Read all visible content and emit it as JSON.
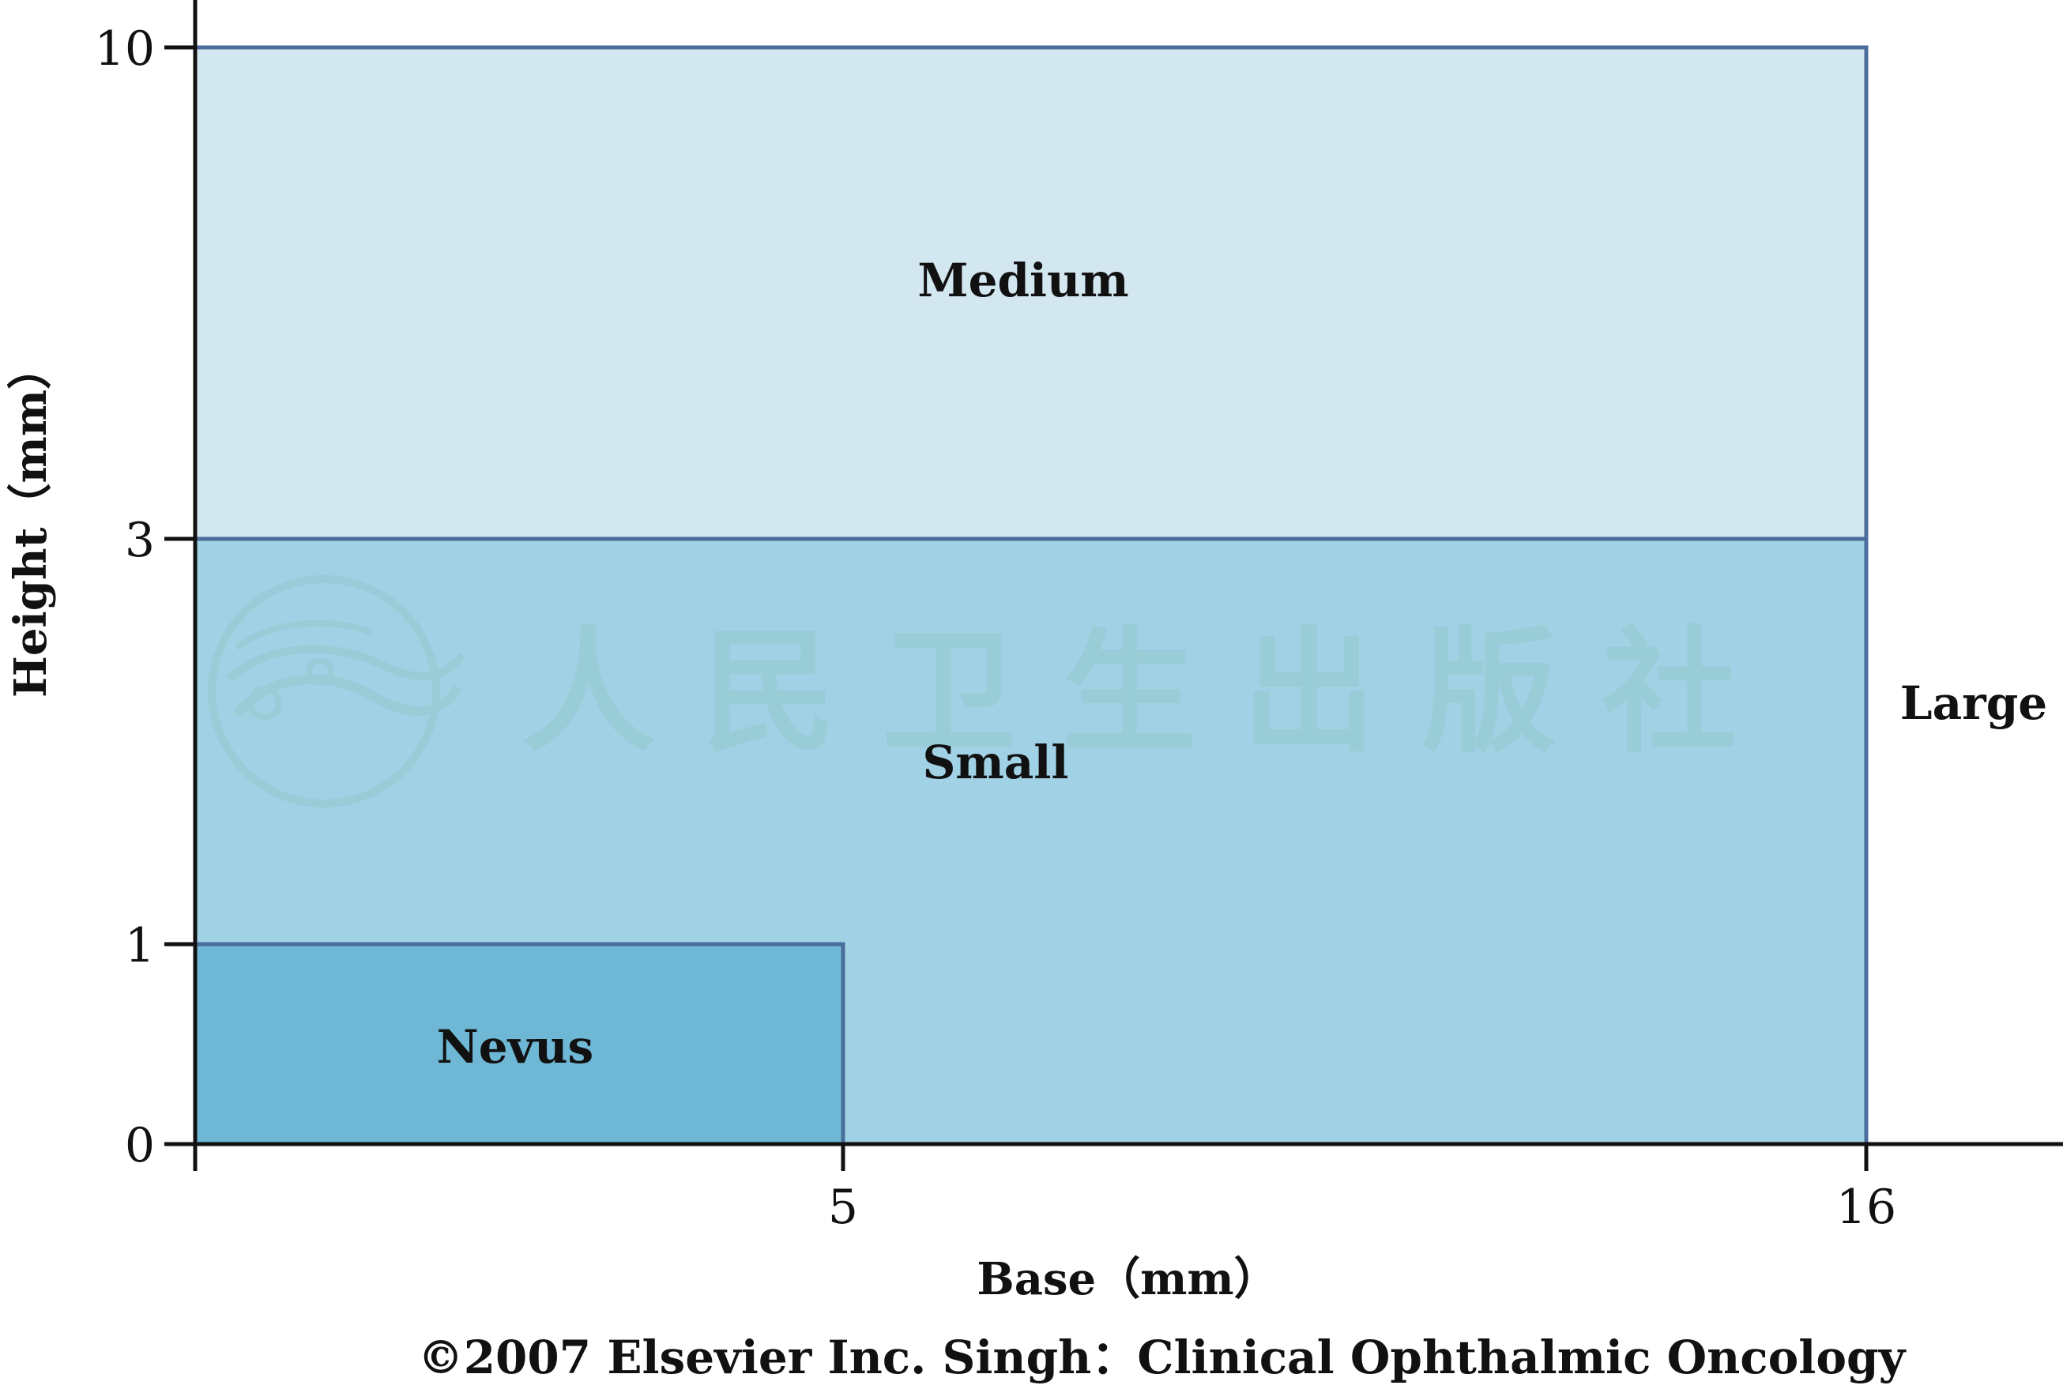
{
  "chart_data": {
    "type": "area",
    "title": "",
    "xlabel": "Base（mm）",
    "ylabel": "Height（mm）",
    "x_ticks": [
      5,
      16
    ],
    "y_ticks": [
      0,
      1,
      3,
      10
    ],
    "grid": false,
    "legend": "none",
    "regions": [
      {
        "name": "Medium",
        "x_range": [
          0,
          16
        ],
        "y_range": [
          3,
          10
        ],
        "color": "#d3e7f1"
      },
      {
        "name": "Small",
        "x_range": [
          0,
          16
        ],
        "y_range": [
          0,
          3
        ],
        "color": "#a0d1e4"
      },
      {
        "name": "Nevus",
        "x_range": [
          0,
          5
        ],
        "y_range": [
          0,
          1
        ],
        "color": "#6fb8d5"
      },
      {
        "name": "Large",
        "x_range": [
          16,
          null
        ],
        "y_range": [
          null,
          null
        ],
        "color": "#ffffff"
      }
    ],
    "outline_color": "#4a6d9c",
    "axis_color": "#111111"
  },
  "watermark": {
    "text": "人民卫生出版社",
    "color": "#8fc6c9"
  },
  "credit": "©2007 Elsevier Inc. Singh：Clinical Ophthalmic Oncology"
}
